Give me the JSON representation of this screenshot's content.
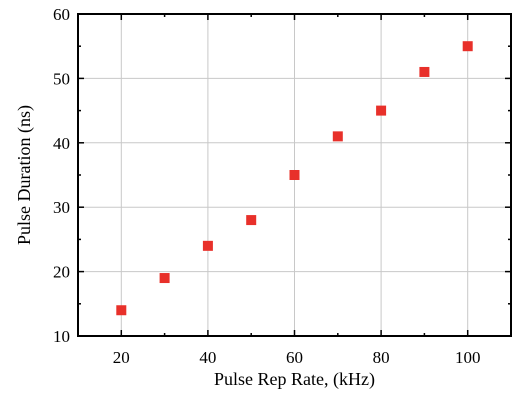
{
  "chart_data": {
    "type": "scatter",
    "title": "",
    "xlabel": "Pulse Rep Rate, (kHz)",
    "ylabel": "Pulse Duration (ns)",
    "xlim": [
      10,
      110
    ],
    "ylim": [
      10,
      60
    ],
    "xticks": [
      20,
      40,
      60,
      80,
      100
    ],
    "yticks": [
      10,
      20,
      30,
      40,
      50,
      60
    ],
    "grid": true,
    "marker": "square",
    "color": "#e8302a",
    "series": [
      {
        "x": [
          20,
          30,
          40,
          50,
          60,
          70,
          80,
          90,
          100
        ],
        "y": [
          14,
          19,
          24,
          28,
          35,
          41,
          45,
          51,
          55
        ]
      }
    ]
  }
}
